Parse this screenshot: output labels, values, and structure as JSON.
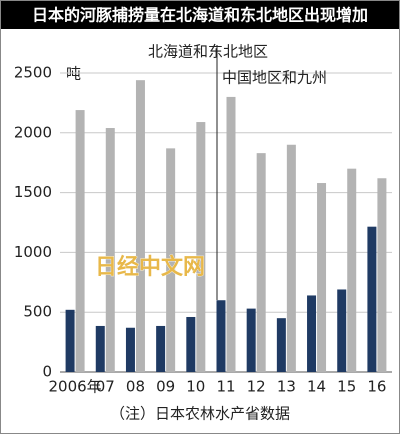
{
  "chart_data": {
    "type": "bar",
    "title": "日本的河豚捕捞量在北海道和东北地区出现增加",
    "unit": "吨",
    "source": "（注）日本农林水产省数据",
    "watermark": "日经中文网",
    "categories": [
      "2006年",
      "07",
      "08",
      "09",
      "10",
      "11",
      "12",
      "13",
      "14",
      "15",
      "16"
    ],
    "series": [
      {
        "name": "北海道和东北地区",
        "color": "#1f3a63",
        "values": [
          520,
          385,
          370,
          385,
          460,
          600,
          530,
          450,
          640,
          690,
          1215
        ]
      },
      {
        "name": "中国地区和九州",
        "color": "#b3b3b3",
        "values": [
          2190,
          2040,
          2440,
          1870,
          2090,
          2300,
          1830,
          1900,
          1580,
          1700,
          1620
        ]
      }
    ],
    "ylim": [
      0,
      2500
    ],
    "yticks": [
      0,
      500,
      1000,
      1500,
      2000,
      2500
    ],
    "grid": true
  }
}
